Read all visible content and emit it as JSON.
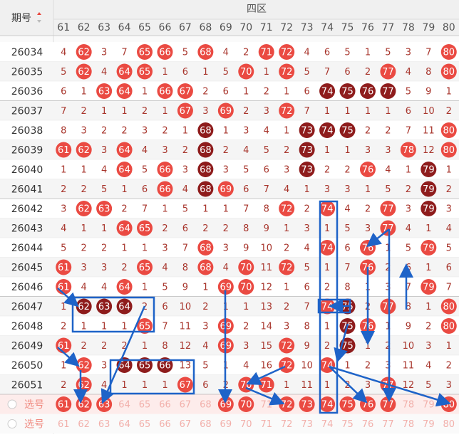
{
  "header": {
    "issue_label": "期号",
    "zone": "四区"
  },
  "columns": [
    61,
    62,
    63,
    64,
    65,
    66,
    67,
    68,
    69,
    70,
    71,
    72,
    73,
    74,
    75,
    76,
    77,
    78,
    79,
    80
  ],
  "rows": [
    {
      "issue": "26034",
      "cells": [
        4,
        {
          "value": 62,
          "ball": "#ea4a42"
        },
        3,
        7,
        {
          "value": 65,
          "ball": "#ea4a42"
        },
        {
          "value": 66,
          "ball": "#ea4a42"
        },
        5,
        {
          "value": 68,
          "ball": "#ea4a42"
        },
        4,
        2,
        {
          "value": 71,
          "ball": "#ea4a42"
        },
        {
          "value": 72,
          "ball": "#ea4a42"
        },
        4,
        6,
        5,
        1,
        5,
        3,
        7,
        {
          "value": 80,
          "ball": "#ea4a42"
        }
      ]
    },
    {
      "issue": "26035",
      "cells": [
        5,
        {
          "value": 62,
          "ball": "#ea4a42"
        },
        4,
        {
          "value": 64,
          "ball": "#ea4a42"
        },
        {
          "value": 65,
          "ball": "#ea4a42"
        },
        1,
        6,
        1,
        5,
        {
          "value": 70,
          "ball": "#ea4a42"
        },
        1,
        {
          "value": 72,
          "ball": "#ea4a42"
        },
        5,
        7,
        6,
        2,
        {
          "value": 77,
          "ball": "#ea4a42"
        },
        4,
        8,
        {
          "value": 80,
          "ball": "#ea4a42"
        }
      ]
    },
    {
      "issue": "26036",
      "cells": [
        6,
        1,
        {
          "value": 63,
          "ball": "#ea4a42"
        },
        {
          "value": 64,
          "ball": "#ea4a42"
        },
        1,
        {
          "value": 66,
          "ball": "#ea4a42"
        },
        {
          "value": 67,
          "ball": "#ea4a42"
        },
        2,
        6,
        1,
        2,
        1,
        6,
        {
          "value": 74,
          "ball": "#8e1c1c"
        },
        {
          "value": 75,
          "ball": "#8e1c1c"
        },
        {
          "value": 76,
          "ball": "#8e1c1c"
        },
        {
          "value": 77,
          "ball": "#8e1c1c"
        },
        5,
        9,
        1
      ]
    },
    {
      "issue": "26037",
      "cells": [
        7,
        2,
        1,
        1,
        2,
        1,
        {
          "value": 67,
          "ball": "#ea4a42"
        },
        3,
        {
          "value": 69,
          "ball": "#ea4a42"
        },
        2,
        3,
        {
          "value": 72,
          "ball": "#ea4a42"
        },
        7,
        1,
        1,
        1,
        1,
        6,
        10,
        2
      ]
    },
    {
      "issue": "26038",
      "cells": [
        8,
        3,
        2,
        2,
        3,
        2,
        1,
        {
          "value": 68,
          "ball": "#8e1c1c"
        },
        1,
        3,
        4,
        1,
        {
          "value": 73,
          "ball": "#8e1c1c"
        },
        {
          "value": 74,
          "ball": "#8e1c1c"
        },
        {
          "value": 75,
          "ball": "#8e1c1c"
        },
        2,
        2,
        7,
        11,
        {
          "value": 80,
          "ball": "#ea4a42"
        }
      ]
    },
    {
      "issue": "26039",
      "cells": [
        {
          "value": 61,
          "ball": "#ea4a42"
        },
        {
          "value": 62,
          "ball": "#ea4a42"
        },
        3,
        {
          "value": 64,
          "ball": "#ea4a42"
        },
        4,
        3,
        2,
        {
          "value": 68,
          "ball": "#8e1c1c"
        },
        2,
        4,
        5,
        2,
        {
          "value": 73,
          "ball": "#8e1c1c"
        },
        1,
        1,
        3,
        3,
        {
          "value": 78,
          "ball": "#ea4a42"
        },
        12,
        {
          "value": 80,
          "ball": "#ea4a42"
        }
      ]
    },
    {
      "issue": "26040",
      "cells": [
        1,
        1,
        4,
        {
          "value": 64,
          "ball": "#ea4a42"
        },
        5,
        {
          "value": 66,
          "ball": "#ea4a42"
        },
        3,
        {
          "value": 68,
          "ball": "#8e1c1c"
        },
        3,
        5,
        6,
        3,
        {
          "value": 73,
          "ball": "#8e1c1c"
        },
        2,
        2,
        {
          "value": 76,
          "ball": "#ea4a42"
        },
        4,
        1,
        {
          "value": 79,
          "ball": "#8e1c1c"
        },
        1
      ]
    },
    {
      "issue": "26041",
      "cells": [
        2,
        2,
        5,
        1,
        6,
        {
          "value": 66,
          "ball": "#ea4a42"
        },
        4,
        {
          "value": 68,
          "ball": "#8e1c1c"
        },
        {
          "value": 69,
          "ball": "#ea4a42"
        },
        6,
        7,
        4,
        1,
        3,
        3,
        1,
        5,
        2,
        {
          "value": 79,
          "ball": "#8e1c1c"
        },
        2
      ]
    },
    {
      "issue": "26042",
      "cells": [
        3,
        {
          "value": 62,
          "ball": "#ea4a42"
        },
        {
          "value": 63,
          "ball": "#ea4a42"
        },
        2,
        7,
        1,
        5,
        1,
        1,
        7,
        8,
        {
          "value": 72,
          "ball": "#ea4a42"
        },
        2,
        {
          "value": 74,
          "ball": "#ea4a42"
        },
        4,
        2,
        {
          "value": 77,
          "ball": "#ea4a42"
        },
        3,
        {
          "value": 79,
          "ball": "#8e1c1c"
        },
        3
      ]
    },
    {
      "issue": "26043",
      "cells": [
        4,
        1,
        1,
        {
          "value": 64,
          "ball": "#ea4a42"
        },
        {
          "value": 65,
          "ball": "#ea4a42"
        },
        2,
        6,
        2,
        2,
        8,
        9,
        1,
        3,
        1,
        5,
        3,
        {
          "value": 77,
          "ball": "#ea4a42"
        },
        4,
        1,
        4
      ]
    },
    {
      "issue": "26044",
      "cells": [
        5,
        2,
        2,
        1,
        1,
        3,
        7,
        {
          "value": 68,
          "ball": "#ea4a42"
        },
        3,
        9,
        10,
        2,
        4,
        {
          "value": 74,
          "ball": "#ea4a42"
        },
        6,
        {
          "value": 76,
          "ball": "#ea4a42"
        },
        1,
        5,
        {
          "value": 79,
          "ball": "#ea4a42"
        },
        5
      ]
    },
    {
      "issue": "26045",
      "cells": [
        {
          "value": 61,
          "ball": "#ea4a42"
        },
        3,
        3,
        2,
        {
          "value": 65,
          "ball": "#ea4a42"
        },
        4,
        8,
        {
          "value": 68,
          "ball": "#ea4a42"
        },
        4,
        {
          "value": 70,
          "ball": "#ea4a42"
        },
        11,
        {
          "value": 72,
          "ball": "#ea4a42"
        },
        5,
        1,
        7,
        {
          "value": 76,
          "ball": "#ea4a42"
        },
        2,
        6,
        1,
        6
      ]
    },
    {
      "issue": "26046",
      "cells": [
        {
          "value": 61,
          "ball": "#ea4a42"
        },
        4,
        4,
        {
          "value": 64,
          "ball": "#ea4a42"
        },
        1,
        5,
        9,
        1,
        {
          "value": 69,
          "ball": "#ea4a42"
        },
        {
          "value": 70,
          "ball": "#ea4a42"
        },
        12,
        1,
        6,
        2,
        8,
        1,
        3,
        7,
        {
          "value": 79,
          "ball": "#ea4a42"
        },
        7
      ]
    },
    {
      "issue": "26047",
      "cells": [
        1,
        {
          "value": 62,
          "ball": "#8e1c1c"
        },
        {
          "value": 63,
          "ball": "#8e1c1c"
        },
        {
          "value": 64,
          "ball": "#8e1c1c"
        },
        2,
        6,
        10,
        2,
        1,
        1,
        13,
        2,
        7,
        {
          "value": 74,
          "ball": "#ea4a42"
        },
        {
          "value": 75,
          "ball": "#8e1c1c"
        },
        2,
        {
          "value": 77,
          "ball": "#ea4a42"
        },
        8,
        1,
        {
          "value": 80,
          "ball": "#ea4a42"
        }
      ]
    },
    {
      "issue": "26048",
      "cells": [
        2,
        1,
        1,
        1,
        {
          "value": 65,
          "ball": "#ea4a42"
        },
        7,
        11,
        3,
        {
          "value": 69,
          "ball": "#ea4a42"
        },
        2,
        14,
        3,
        8,
        1,
        {
          "value": 75,
          "ball": "#8e1c1c"
        },
        {
          "value": 76,
          "ball": "#ea4a42"
        },
        1,
        9,
        2,
        {
          "value": 80,
          "ball": "#ea4a42"
        }
      ]
    },
    {
      "issue": "26049",
      "cells": [
        {
          "value": 61,
          "ball": "#ea4a42"
        },
        2,
        2,
        2,
        1,
        8,
        12,
        4,
        {
          "value": 69,
          "ball": "#ea4a42"
        },
        3,
        15,
        {
          "value": 72,
          "ball": "#ea4a42"
        },
        9,
        2,
        {
          "value": 75,
          "ball": "#8e1c1c"
        },
        1,
        2,
        10,
        3,
        1
      ]
    },
    {
      "issue": "26050",
      "cells": [
        1,
        {
          "value": 62,
          "ball": "#ea4a42"
        },
        3,
        {
          "value": 64,
          "ball": "#8e1c1c"
        },
        {
          "value": 65,
          "ball": "#8e1c1c"
        },
        {
          "value": 66,
          "ball": "#8e1c1c"
        },
        13,
        5,
        1,
        4,
        16,
        {
          "value": 72,
          "ball": "#ea4a42"
        },
        10,
        {
          "value": 74,
          "ball": "#ea4a42"
        },
        1,
        2,
        3,
        11,
        4,
        2
      ]
    },
    {
      "issue": "26051",
      "cells": [
        2,
        {
          "value": 62,
          "ball": "#ea4a42"
        },
        4,
        1,
        1,
        1,
        {
          "value": 67,
          "ball": "#ea4a42"
        },
        6,
        2,
        {
          "value": 70,
          "ball": "#ea4a42"
        },
        {
          "value": 71,
          "ball": "#ea4a42"
        },
        1,
        11,
        1,
        2,
        3,
        {
          "value": 77,
          "ball": "#ea4a42"
        },
        12,
        5,
        3
      ]
    }
  ],
  "select_rows": [
    {
      "label": "选号",
      "cells": [
        {
          "value": 61,
          "ball": "#ea4a42"
        },
        {
          "value": 62,
          "ball": "#ea4a42"
        },
        {
          "value": 63,
          "ball": "#ea4a42"
        },
        64,
        65,
        66,
        67,
        68,
        {
          "value": 69,
          "ball": "#ea4a42"
        },
        {
          "value": 70,
          "ball": "#ea4a42"
        },
        71,
        {
          "value": 72,
          "ball": "#ea4a42"
        },
        {
          "value": 73,
          "ball": "#ea4a42"
        },
        {
          "value": 74,
          "ball": "#ea4a42"
        },
        {
          "value": 75,
          "ball": "#ea4a42"
        },
        {
          "value": 76,
          "ball": "#ea4a42"
        },
        {
          "value": 77,
          "ball": "#ea4a42"
        },
        78,
        79,
        {
          "value": 80,
          "ball": "#ea4a42"
        }
      ]
    },
    {
      "label": "选号",
      "cells": [
        61,
        62,
        63,
        64,
        65,
        66,
        67,
        68,
        69,
        70,
        71,
        72,
        73,
        74,
        75,
        76,
        77,
        78,
        79,
        80
      ]
    }
  ]
}
